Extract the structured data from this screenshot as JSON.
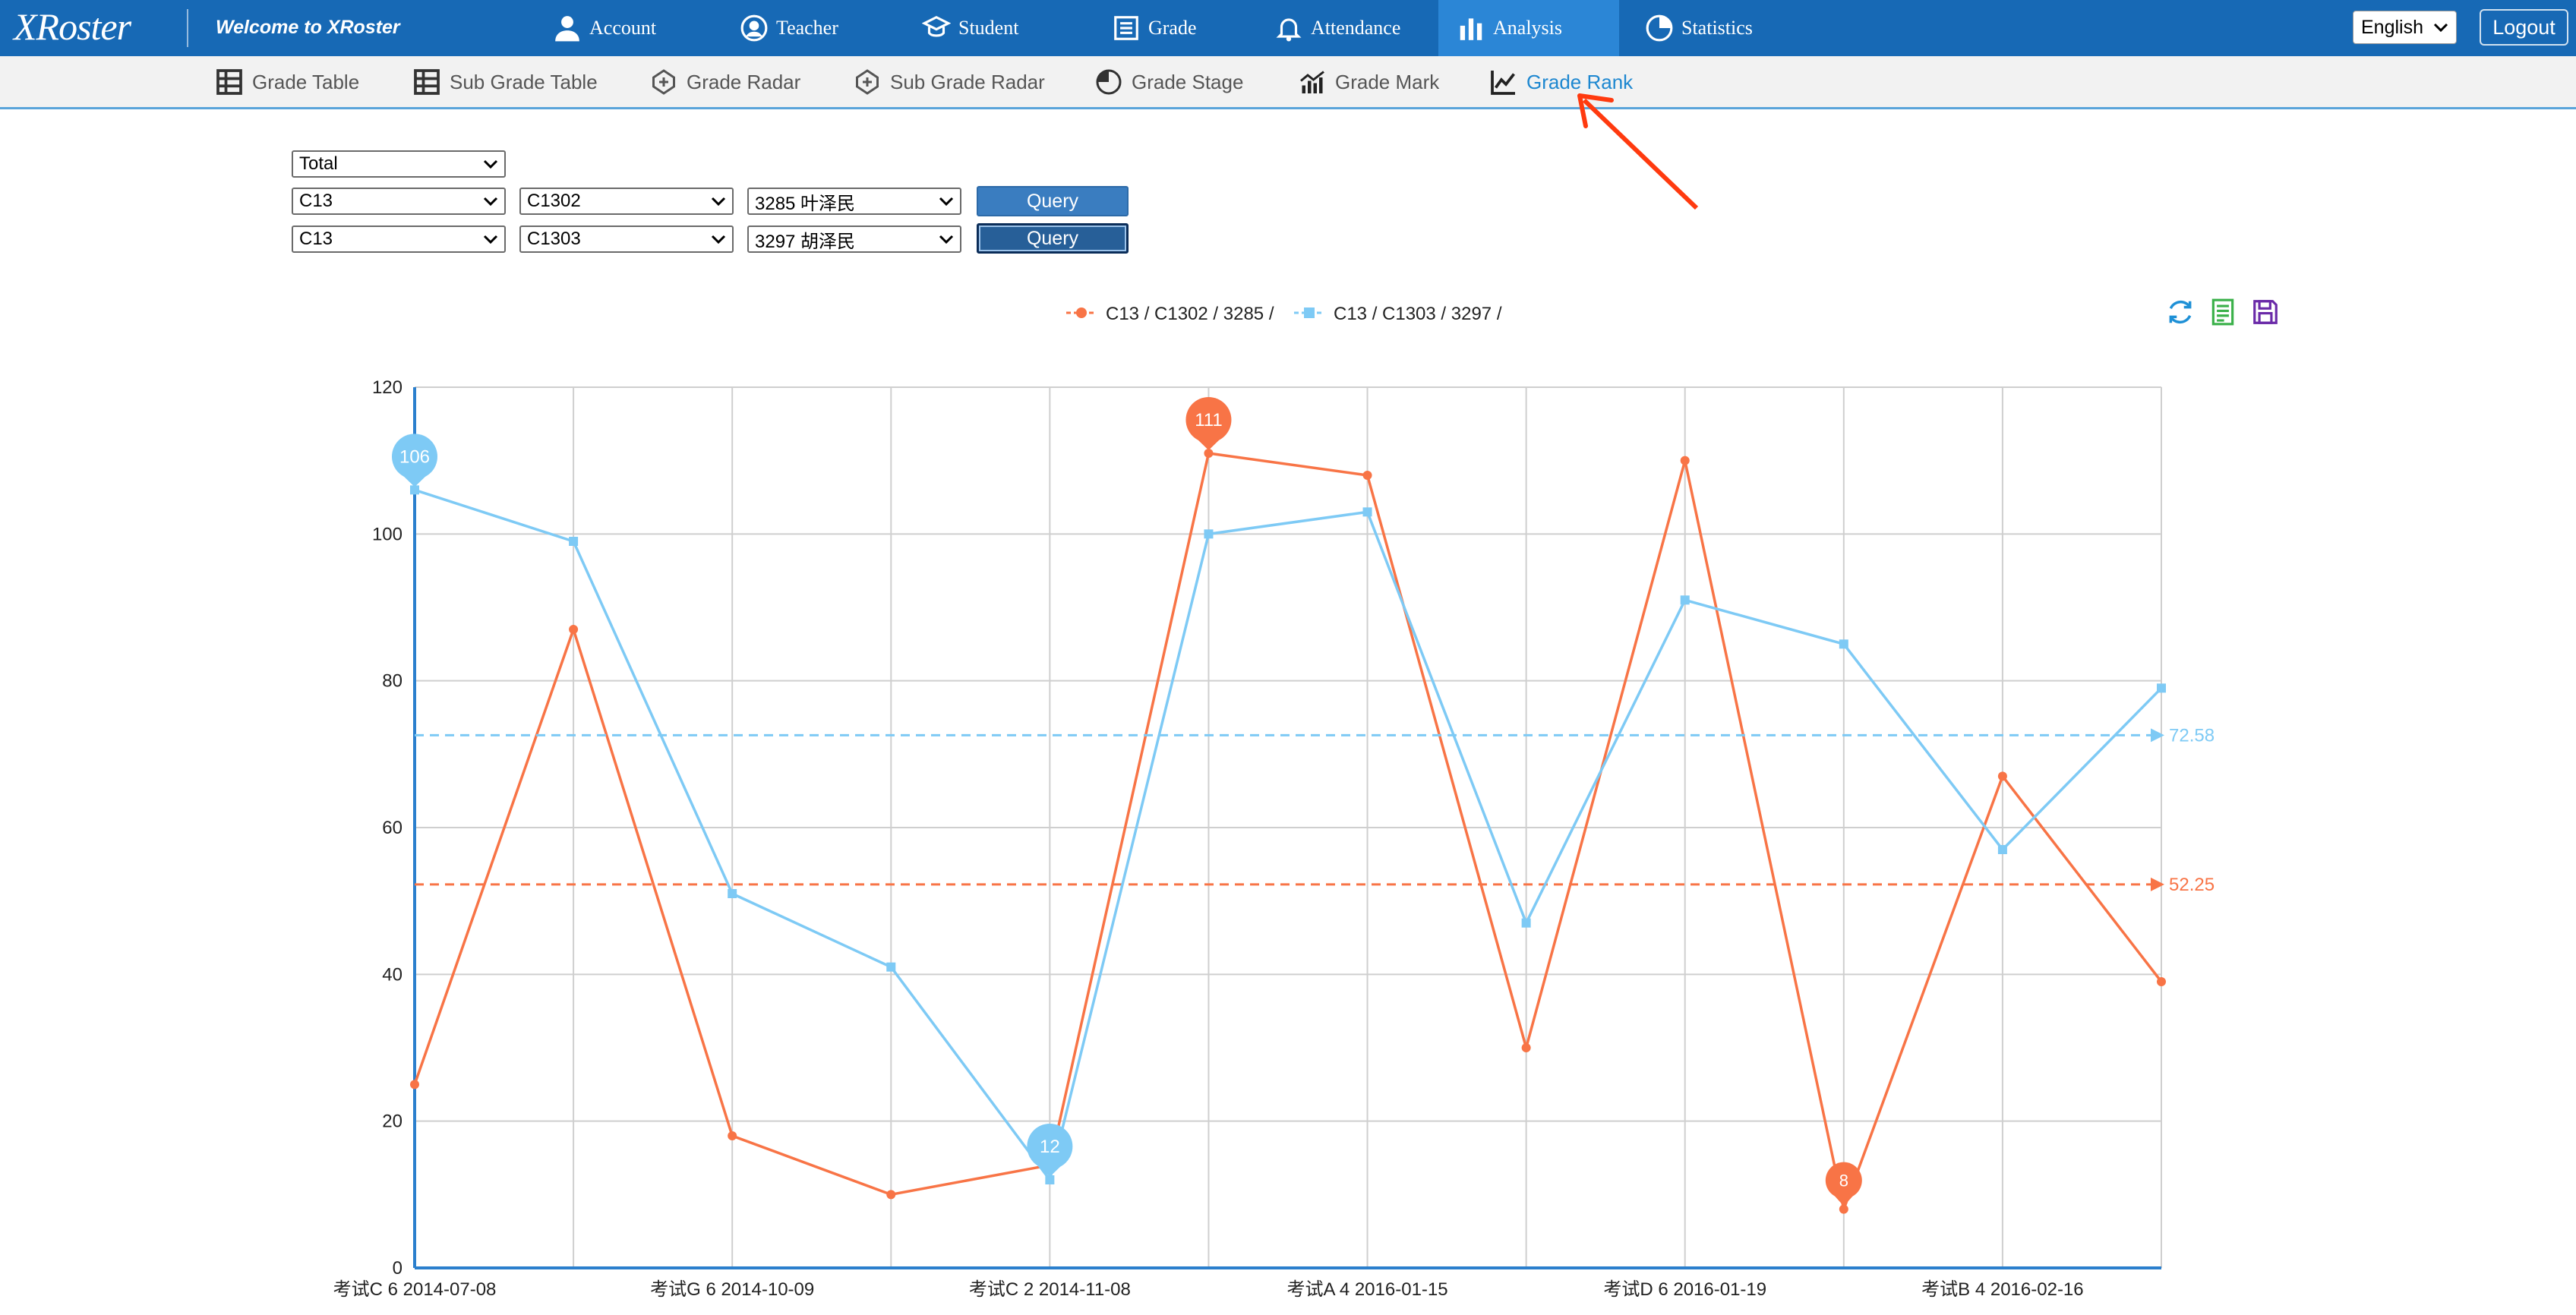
{
  "app": {
    "logo": "XRoster",
    "welcome": "Welcome to XRoster"
  },
  "nav": [
    {
      "label": "Account",
      "icon": "user-icon"
    },
    {
      "label": "Teacher",
      "icon": "teacher-icon"
    },
    {
      "label": "Student",
      "icon": "student-icon"
    },
    {
      "label": "Grade",
      "icon": "grade-list-icon"
    },
    {
      "label": "Attendance",
      "icon": "bell-icon"
    },
    {
      "label": "Analysis",
      "icon": "bar-chart-icon",
      "active": true
    },
    {
      "label": "Statistics",
      "icon": "pie-chart-icon"
    }
  ],
  "language": "English",
  "logout_label": "Logout",
  "subnav": [
    {
      "label": "Grade Table",
      "icon": "table-icon"
    },
    {
      "label": "Sub Grade Table",
      "icon": "table-icon"
    },
    {
      "label": "Grade Radar",
      "icon": "radar-icon"
    },
    {
      "label": "Sub Grade Radar",
      "icon": "radar-icon"
    },
    {
      "label": "Grade Stage",
      "icon": "pie-icon"
    },
    {
      "label": "Grade Mark",
      "icon": "mark-chart-icon"
    },
    {
      "label": "Grade Rank",
      "icon": "line-chart-icon",
      "active": true
    }
  ],
  "form": {
    "subject": "Total",
    "row1": {
      "grade": "C13",
      "class": "C1302",
      "student": "3285 叶泽民",
      "button": "Query"
    },
    "row2": {
      "grade": "C13",
      "class": "C1303",
      "student": "3297 胡泽民",
      "button": "Query"
    }
  },
  "colors": {
    "nav_bg": "#1769b5",
    "series1": "#f87446",
    "series2": "#7ecaf5"
  },
  "chart_data": {
    "type": "line",
    "title": "",
    "xlabel": "",
    "ylabel": "",
    "ylim": [
      0,
      120
    ],
    "yticks": [
      0,
      20,
      40,
      60,
      80,
      100,
      120
    ],
    "grid": true,
    "legend": "top-center",
    "x": [
      "考试C 6 2014-07-08",
      "",
      "考试G 6 2014-10-09",
      "",
      "考试C 2 2014-11-08",
      "",
      "考试A 4 2016-01-15",
      "",
      "考试D 6 2016-01-19",
      "",
      "考试B 4 2016-02-16",
      ""
    ],
    "series": [
      {
        "name": "C13 / C1302 / 3285 /",
        "marker": "circle",
        "values": [
          25,
          87,
          18,
          10,
          14,
          111,
          108,
          30,
          110,
          8,
          67,
          39
        ],
        "average": 52.25,
        "average_label": "52.25",
        "max_label": "111",
        "min_label": "8"
      },
      {
        "name": "C13 / C1303 / 3297 /",
        "marker": "square",
        "values": [
          106,
          99,
          51,
          41,
          12,
          100,
          103,
          47,
          91,
          85,
          57,
          79
        ],
        "average": 72.58,
        "average_label": "72.58",
        "max_label": "106",
        "min_label": "12"
      }
    ]
  }
}
